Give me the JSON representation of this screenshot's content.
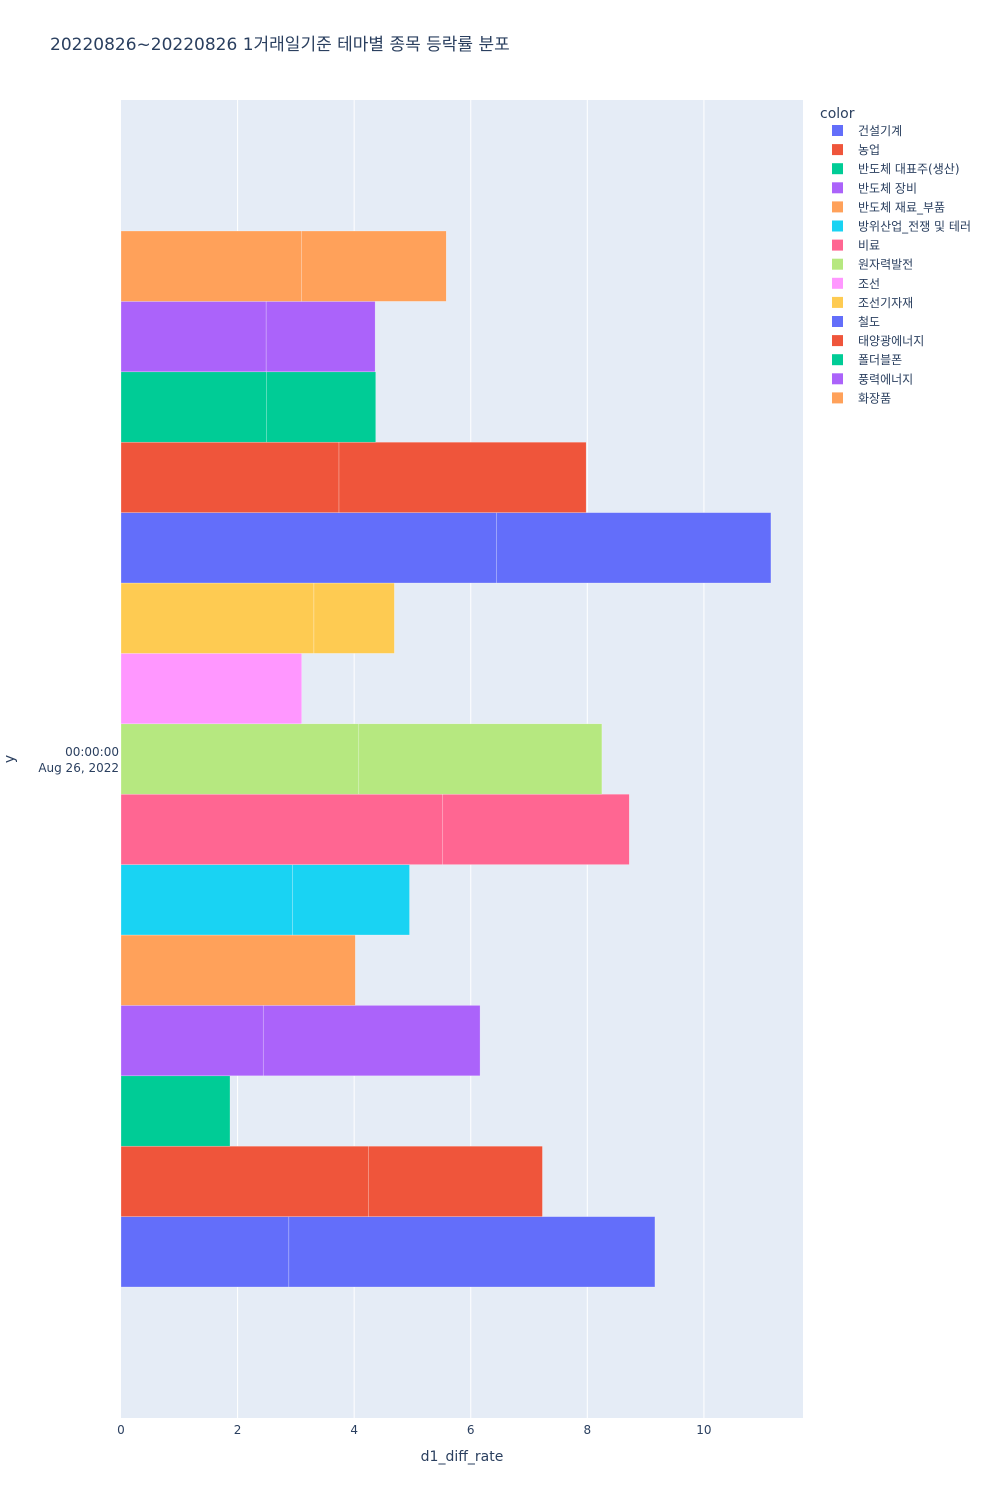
{
  "chart_data": {
    "type": "bar",
    "orientation": "horizontal",
    "barmode": "stack",
    "title": "20220826~20220826 1거래일기준 테마별 종목 등락률 분포",
    "xlabel": "d1_diff_rate",
    "ylabel": "y",
    "xlim": [
      0,
      11.7
    ],
    "x_ticks": [
      0,
      2,
      4,
      6,
      8,
      10
    ],
    "y_category_label_line1": "00:00:00",
    "y_category_label_line2": "Aug 26, 2022",
    "grid": true,
    "legend_title": "color",
    "legend_position": "right",
    "series": [
      {
        "name": "건설기계",
        "color": "#636efa",
        "segments": [
          2.88,
          6.28
        ]
      },
      {
        "name": "농업",
        "color": "#EF553B",
        "segments": [
          4.25,
          2.98
        ]
      },
      {
        "name": "반도체 대표주(생산)",
        "color": "#00cc96",
        "segments": [
          1.87
        ]
      },
      {
        "name": "반도체 장비",
        "color": "#ab63fa",
        "segments": [
          2.44,
          3.72
        ]
      },
      {
        "name": "반도체 재료_부품",
        "color": "#FFA15A",
        "segments": [
          4.02
        ]
      },
      {
        "name": "방위산업_전쟁 및 테러",
        "color": "#19d3f3",
        "segments": [
          2.94,
          2.01
        ]
      },
      {
        "name": "비료",
        "color": "#FF6692",
        "segments": [
          5.52,
          3.2
        ]
      },
      {
        "name": "원자력발전",
        "color": "#B6E880",
        "segments": [
          4.08,
          4.17
        ]
      },
      {
        "name": "조선",
        "color": "#FF97FF",
        "segments": [
          3.1
        ]
      },
      {
        "name": "조선기자재",
        "color": "#FECB52",
        "segments": [
          3.31,
          1.38
        ]
      },
      {
        "name": "철도",
        "color": "#636efa",
        "segments": [
          6.44,
          4.71
        ]
      },
      {
        "name": "태양광에너지",
        "color": "#EF553B",
        "segments": [
          3.74,
          4.24
        ]
      },
      {
        "name": "폴더블폰",
        "color": "#00cc96",
        "segments": [
          2.5,
          1.87
        ]
      },
      {
        "name": "풍력에너지",
        "color": "#ab63fa",
        "segments": [
          2.49,
          1.87
        ]
      },
      {
        "name": "화장품",
        "color": "#FFA15A",
        "segments": [
          3.1,
          2.48
        ]
      }
    ]
  }
}
